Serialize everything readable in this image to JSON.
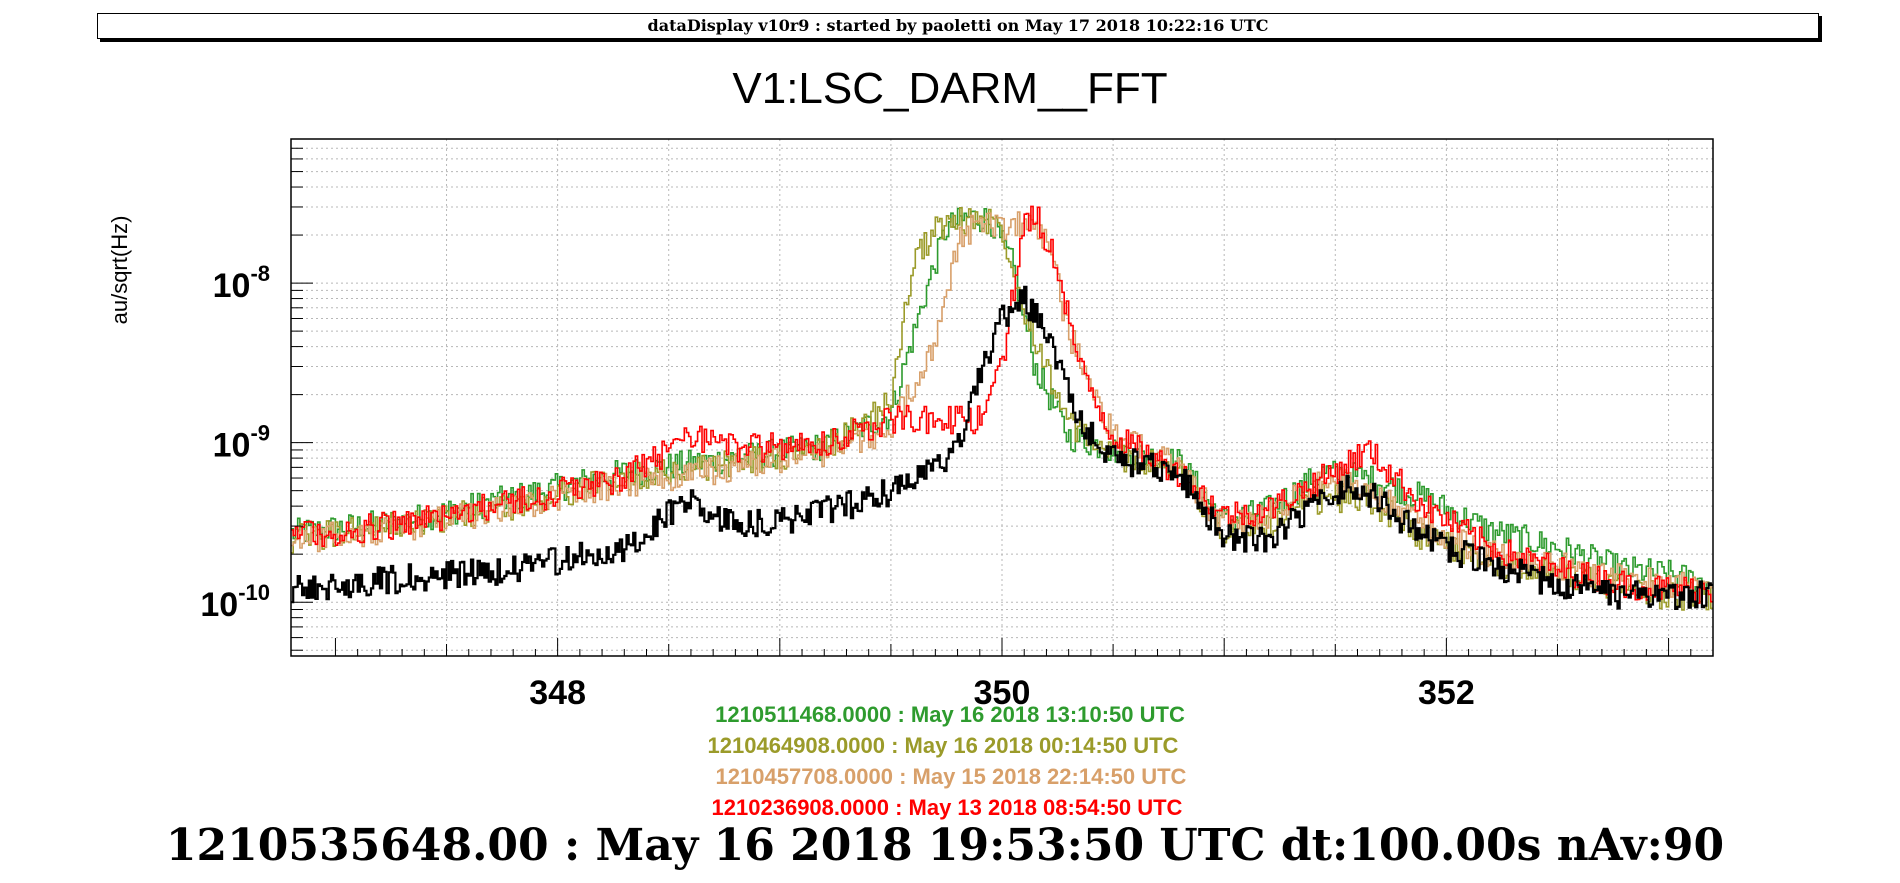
{
  "header": {
    "text": "dataDisplay v10r9 : started by paoletti on May 17 2018 10:22:16 UTC"
  },
  "footer": {
    "text": "1210535648.00 : May 16 2018 19:53:50 UTC dt:100.00s nAv:90"
  },
  "chart_data": {
    "type": "line",
    "title": "V1:LSC_DARM__FFT",
    "ylabel": "au/sqrt(Hz)",
    "xlabel": "",
    "xlim": [
      346.8,
      353.2
    ],
    "ylim": [
      4.6e-11,
      8e-08
    ],
    "yscale": "log",
    "grid": true,
    "x_ticks": [
      "348",
      "350",
      "352"
    ],
    "y_ticks": [
      {
        "base": "10",
        "exp": "-10",
        "value": 1e-10
      },
      {
        "base": "10",
        "exp": "-9",
        "value": 1e-09
      },
      {
        "base": "10",
        "exp": "-8",
        "value": 1e-08
      }
    ],
    "legend": [
      {
        "text": "1210511468.0000 : May 16 2018 13:10:50 UTC",
        "color": "#2e9b2e"
      },
      {
        "text": "1210464908.0000 : May 16 2018 00:14:50 UTC",
        "color": "#9b9b2a"
      },
      {
        "text": "1210457708.0000 : May 15 2018 22:14:50 UTC",
        "color": "#d8a06a"
      },
      {
        "text": "1210236908.0000 : May 13 2018 08:54:50 UTC",
        "color": "#ff0000"
      }
    ],
    "series": [
      {
        "color": "#2e9b2e",
        "x": [
          346.8,
          347.3,
          347.8,
          348.3,
          348.8,
          349.2,
          349.5,
          349.65,
          349.75,
          349.85,
          349.95,
          350.05,
          350.15,
          350.3,
          350.5,
          350.8,
          351.0,
          351.2,
          351.45,
          351.65,
          351.9,
          352.2,
          352.5,
          352.8,
          353.0,
          353.2
        ],
        "values": [
          2.7e-10,
          3.2e-10,
          4.5e-10,
          6.5e-10,
          8e-10,
          9.5e-10,
          1.5e-09,
          8e-09,
          2.2e-08,
          2.6e-08,
          2.5e-08,
          1.3e-08,
          3e-09,
          1.1e-09,
          9e-10,
          7.5e-10,
          3.2e-10,
          3.8e-10,
          6.5e-10,
          6e-10,
          4.5e-10,
          2.8e-10,
          2.2e-10,
          1.6e-10,
          1.5e-10,
          1.3e-10
        ]
      },
      {
        "color": "#9b9b2a",
        "x": [
          346.8,
          347.3,
          347.8,
          348.3,
          348.8,
          349.2,
          349.5,
          349.6,
          349.7,
          349.8,
          349.9,
          350.0,
          350.1,
          350.3,
          350.5,
          350.8,
          351.0,
          351.2,
          351.45,
          351.65,
          351.9,
          352.2,
          352.5,
          352.8,
          353.0,
          353.2
        ],
        "values": [
          2.5e-10,
          3e-10,
          4e-10,
          6e-10,
          7.5e-10,
          9e-10,
          1.8e-09,
          1.3e-08,
          2.2e-08,
          2.4e-08,
          2.6e-08,
          2.3e-08,
          7e-09,
          1.3e-09,
          8.5e-10,
          6.5e-10,
          2.8e-10,
          3e-10,
          4.5e-10,
          4.5e-10,
          2.5e-10,
          1.8e-10,
          1.5e-10,
          1.2e-10,
          1.1e-10,
          1.1e-10
        ]
      },
      {
        "color": "#d8a06a",
        "x": [
          346.8,
          347.3,
          347.8,
          348.3,
          348.8,
          349.2,
          349.5,
          349.7,
          349.8,
          349.9,
          350.0,
          350.1,
          350.2,
          350.3,
          350.5,
          350.8,
          351.0,
          351.2,
          351.45,
          351.65,
          351.9,
          352.2,
          352.5,
          352.8,
          353.0,
          353.2
        ],
        "values": [
          2.4e-10,
          2.9e-10,
          4e-10,
          5.5e-10,
          7e-10,
          8.5e-10,
          1.2e-09,
          4e-09,
          1.8e-08,
          2.4e-08,
          2.2e-08,
          2.3e-08,
          2e-08,
          5e-09,
          1.1e-09,
          7e-10,
          3e-10,
          3.5e-10,
          6e-10,
          5e-10,
          3e-10,
          2e-10,
          1.7e-10,
          1.4e-10,
          1.3e-10,
          1.2e-10
        ]
      },
      {
        "color": "#ff0000",
        "x": [
          346.8,
          347.3,
          347.8,
          348.3,
          348.6,
          348.8,
          349.2,
          349.5,
          349.7,
          349.9,
          350.0,
          350.1,
          350.15,
          350.25,
          350.35,
          350.5,
          350.8,
          351.0,
          351.2,
          351.45,
          351.65,
          351.9,
          352.2,
          352.5,
          352.8,
          353.0,
          353.2
        ],
        "values": [
          2.6e-10,
          3.1e-10,
          4.2e-10,
          6e-10,
          1.1e-09,
          9e-10,
          1e-09,
          1.4e-09,
          1.4e-09,
          1.4e-09,
          3e-09,
          2.2e-08,
          2.8e-08,
          1.3e-08,
          3e-09,
          1.1e-09,
          6.5e-10,
          3.5e-10,
          3.8e-10,
          6e-10,
          9e-10,
          4e-10,
          2.2e-10,
          1.6e-10,
          1.3e-10,
          1.2e-10,
          1.2e-10
        ]
      },
      {
        "color": "#000000",
        "x": [
          346.8,
          347.3,
          347.8,
          348.3,
          348.6,
          348.8,
          349.0,
          349.3,
          349.6,
          349.8,
          349.9,
          350.0,
          350.1,
          350.2,
          350.35,
          350.5,
          350.8,
          351.0,
          351.2,
          351.4,
          351.6,
          351.9,
          352.2,
          352.5,
          352.8,
          353.0,
          353.2
        ],
        "values": [
          1.2e-10,
          1.4e-10,
          1.6e-10,
          2.2e-10,
          4.5e-10,
          3e-10,
          3.2e-10,
          4e-10,
          5.5e-10,
          9e-10,
          2.5e-09,
          6e-09,
          8e-09,
          5e-09,
          1.3e-09,
          8e-10,
          6.5e-10,
          2.5e-10,
          2.5e-10,
          4e-10,
          5.5e-10,
          2.5e-10,
          1.7e-10,
          1.3e-10,
          1.1e-10,
          1.1e-10,
          1.1e-10
        ]
      }
    ]
  }
}
